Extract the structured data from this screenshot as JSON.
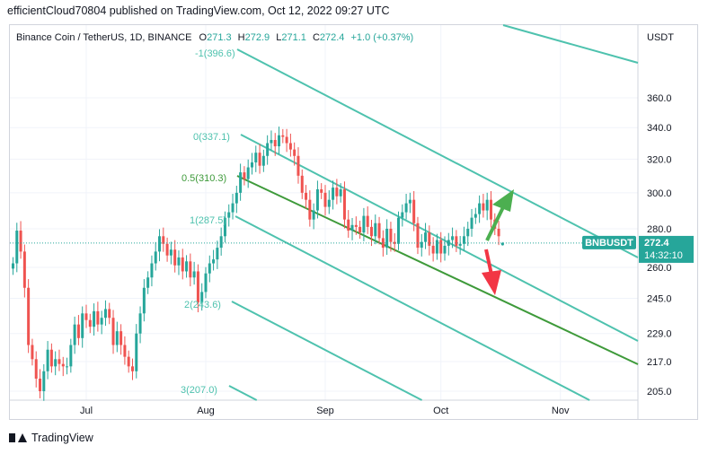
{
  "publish_line": "efficientCloud70804 published on TradingView.com, Oct 12, 2022 09:27 UTC",
  "footer": {
    "brand": "TradingView",
    "logo_icon": "tradingview-logo-icon"
  },
  "colors": {
    "up": "#26a69a",
    "down": "#ef5350",
    "channel": "#4ec2ae",
    "median": "#3e9a3a",
    "arrow_up": "#4caf50",
    "arrow_down": "#f23645",
    "label_bg": "#26a69a"
  },
  "chart_data": {
    "type": "candlestick",
    "symbol_line": {
      "name": "Binance Coin / TetherUS, 1D, BINANCE",
      "o_label": "O",
      "o_value": "271.3",
      "h_label": "H",
      "h_value": "272.9",
      "l_label": "L",
      "l_value": "271.1",
      "c_label": "C",
      "c_value": "272.4",
      "change": "+1.0 (+0.37%)"
    },
    "currency": "USDT",
    "x_ticks": [
      {
        "date": "2022-07-01",
        "label": "Jul"
      },
      {
        "date": "2022-08-01",
        "label": "Aug"
      },
      {
        "date": "2022-09-01",
        "label": "Sep"
      },
      {
        "date": "2022-10-01",
        "label": "Oct"
      },
      {
        "date": "2022-11-01",
        "label": "Nov"
      }
    ],
    "y_ticks": [
      205.0,
      217.0,
      229.0,
      245.0,
      260.0,
      280.0,
      300.0,
      320.0,
      340.0,
      360.0
    ],
    "last_price": {
      "symbol": "BNBUSDT",
      "price": "272.4",
      "countdown": "14:32:10"
    },
    "price_scale": "log",
    "candles_start": "2022-06-12",
    "closes": [
      262,
      279,
      268,
      250,
      224,
      218,
      210,
      205,
      213,
      222,
      215,
      218,
      216,
      215,
      215,
      224,
      233,
      227,
      238,
      235,
      232,
      239,
      233,
      236,
      240,
      236,
      224,
      230,
      224,
      219,
      215,
      213,
      229,
      238,
      250,
      255,
      262,
      268,
      276,
      272,
      266,
      269,
      261,
      265,
      258,
      263,
      255,
      258,
      243,
      248,
      257,
      262,
      264,
      270,
      276,
      286,
      289,
      294,
      300,
      312,
      308,
      315,
      318,
      324,
      316,
      322,
      330,
      332,
      328,
      335,
      334,
      330,
      326,
      322,
      310,
      300,
      296,
      285,
      290,
      302,
      300,
      292,
      296,
      303,
      298,
      302,
      285,
      279,
      282,
      281,
      278,
      287,
      281,
      276,
      283,
      275,
      270,
      280,
      273,
      272,
      286,
      289,
      294,
      296,
      283,
      270,
      273,
      278,
      271,
      267,
      274,
      267,
      271,
      274,
      276,
      271,
      272,
      276,
      280,
      286,
      288,
      294,
      290,
      296,
      285,
      280,
      276,
      272.4
    ],
    "ohlc_readout": {
      "open": 271.3,
      "high": 272.9,
      "low": 271.1,
      "close": 272.4
    },
    "pitchfork_levels": [
      {
        "label": "-1(396.6)"
      },
      {
        "label": "0(337.1)"
      },
      {
        "label": "0.5(310.3)"
      },
      {
        "label": "1(287.5)"
      },
      {
        "label": "2(243.6)"
      },
      {
        "label": "3(207.0)"
      }
    ],
    "annotations": [
      {
        "type": "arrow-up",
        "icon": "green-up-arrow-icon"
      },
      {
        "type": "arrow-down",
        "icon": "red-down-arrow-icon"
      }
    ]
  }
}
